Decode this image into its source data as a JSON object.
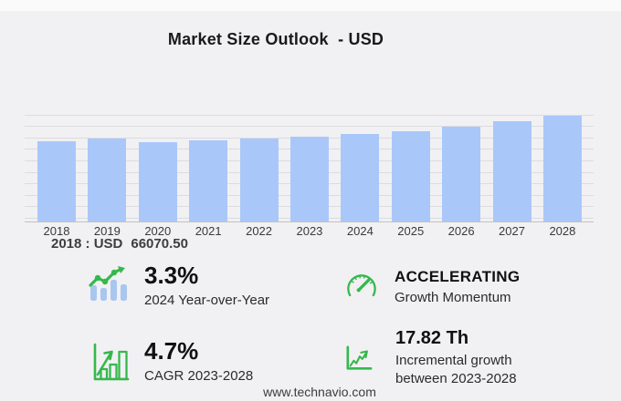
{
  "title": "Market Size Outlook  - USD",
  "chart_data": {
    "type": "bar",
    "title": "Market Size Outlook - USD",
    "unit": "USD",
    "categories": [
      "2018",
      "2019",
      "2020",
      "2021",
      "2022",
      "2023",
      "2024",
      "2025",
      "2026",
      "2027",
      "2028"
    ],
    "values": [
      66070.5,
      68200,
      65500,
      67000,
      68100,
      69800,
      72100,
      74800,
      78400,
      82600,
      87620
    ],
    "ylim": [
      0,
      100000
    ],
    "grid": true,
    "gridline_count": 10,
    "legend": "none",
    "bar_color": "#aac7fa",
    "annotations": [
      "2018 : USD 66070.50"
    ]
  },
  "callout": {
    "prefix": "2018 : USD",
    "value": "66070.50"
  },
  "stats": [
    {
      "id": "yoy",
      "icon": "trend-line-over-bars-icon",
      "value": "3.3%",
      "label": "2024 Year-over-Year"
    },
    {
      "id": "momentum",
      "icon": "speedometer-icon",
      "value": "ACCELERATING",
      "label": "Growth Momentum"
    },
    {
      "id": "cagr",
      "icon": "framed-bar-chart-icon",
      "value": "4.7%",
      "label": "CAGR 2023-2028"
    },
    {
      "id": "incremental",
      "icon": "axes-trend-arrow-icon",
      "value": "17.82 Th",
      "label": "Incremental growth between 2023-2028"
    }
  ],
  "footer": {
    "url": "www.technavio.com"
  },
  "colors": {
    "background": "#f1f1f3",
    "bar": "#aac7fa",
    "gridline": "#dcdcde",
    "axis_line": "#c2c2c4",
    "accent_green": "#35b84c",
    "icon_bar_blue": "#a9c6ef",
    "title_text": "#1a1a1a"
  }
}
